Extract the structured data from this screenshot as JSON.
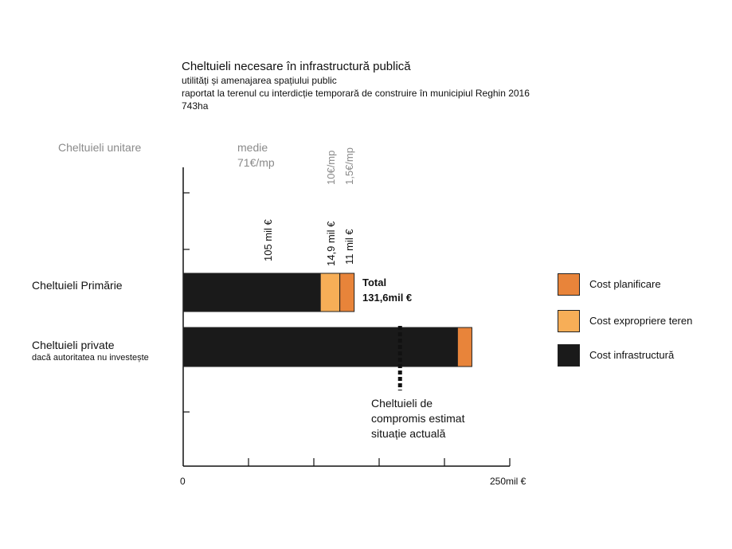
{
  "title": "Cheltuieli necesare în infrastructură publică",
  "subtitle_lines": [
    "utilități și amenajarea spațiului public",
    "raportat la terenul cu interdicție temporară de construire în municipiul Reghin 2016",
    "743ha"
  ],
  "unit_costs": {
    "header": "Cheltuieli unitare",
    "medie_line1": "medie",
    "medie_line2": "71€/mp",
    "rate_expropriere": "10€/mp",
    "rate_planificare": "1,5€/mp"
  },
  "segment_value_labels": {
    "infrastructura": "105 mil €",
    "expropriere": "14,9 mil €",
    "planificare": "11 mil €"
  },
  "total_label_line1": "Total",
  "total_label_line2": "131,6mil €",
  "categories": [
    {
      "label": "Cheltuieli Primărie",
      "sublabel": ""
    },
    {
      "label": "Cheltuieli private",
      "sublabel": "dacă autoritatea nu investește"
    }
  ],
  "annotation": {
    "line1": "Cheltuieli de",
    "line2": "compromis estimat",
    "line3": "situație actuală"
  },
  "legend": [
    {
      "label": "Cost planificare",
      "color": "#e8843a"
    },
    {
      "label": "Cost expropriere teren",
      "color": "#f7ae57"
    },
    {
      "label": "Cost infrastructură",
      "color": "#1a1a1a"
    }
  ],
  "x_axis": {
    "min_label": "0",
    "max_label": "250mil €"
  },
  "chart_data": {
    "type": "bar",
    "orientation": "horizontal",
    "stacked": true,
    "title": "Cheltuieli necesare în infrastructură publică",
    "xlabel": "",
    "ylabel": "",
    "categories": [
      "Cheltuieli Primărie",
      "Cheltuieli private"
    ],
    "series": [
      {
        "name": "Cost infrastructură",
        "values": [
          105,
          210
        ],
        "color": "#1a1a1a"
      },
      {
        "name": "Cost expropriere teren",
        "values": [
          14.9,
          0
        ],
        "color": "#f7ae57"
      },
      {
        "name": "Cost planificare",
        "values": [
          11,
          11
        ],
        "color": "#e8843a"
      }
    ],
    "xlim": [
      0,
      250
    ],
    "x_ticks": [
      0,
      50,
      100,
      150,
      200,
      250
    ],
    "annotation_value": 166,
    "legend_position": "right"
  }
}
